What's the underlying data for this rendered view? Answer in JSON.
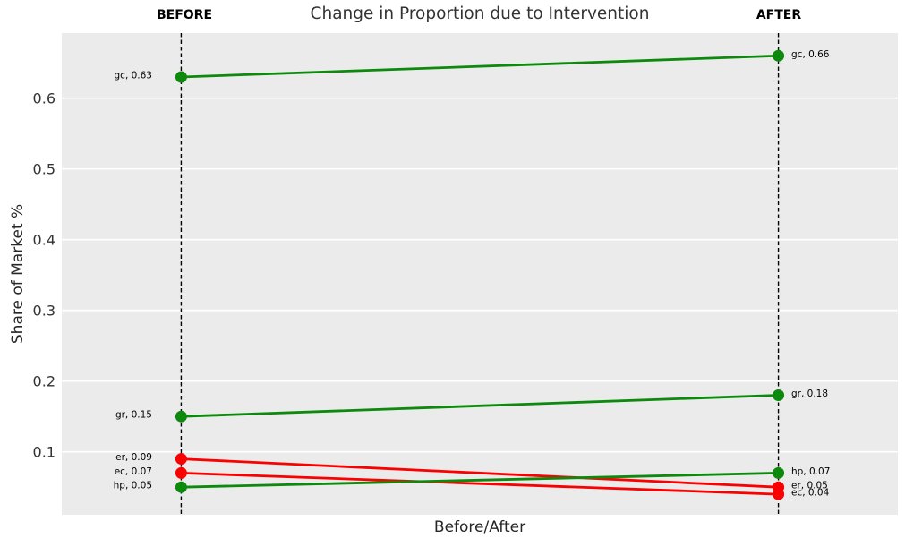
{
  "chart_data": {
    "type": "line",
    "subtype": "slopegraph",
    "title": "Change in Proportion due to Intervention",
    "xlabel": "Before/After",
    "ylabel": "Share of Market %",
    "columns": [
      "BEFORE",
      "AFTER"
    ],
    "x": [
      0,
      1
    ],
    "xlim": [
      -0.2,
      1.2
    ],
    "ylim": [
      0.011,
      0.692
    ],
    "yticks": [
      0.1,
      0.2,
      0.3,
      0.4,
      0.5,
      0.6
    ],
    "ytick_labels": [
      "0.1",
      "0.2",
      "0.3",
      "0.4",
      "0.5",
      "0.6"
    ],
    "grid": "horizontal white gridlines on gray panel",
    "legend": "none",
    "series": [
      {
        "name": "gc",
        "before": 0.63,
        "after": 0.66,
        "trend": "increase",
        "color": "#0d8a0d",
        "label_before": "gc, 0.63",
        "label_after": "gc, 0.66"
      },
      {
        "name": "gr",
        "before": 0.15,
        "after": 0.18,
        "trend": "increase",
        "color": "#0d8a0d",
        "label_before": "gr, 0.15",
        "label_after": "gr, 0.18"
      },
      {
        "name": "er",
        "before": 0.09,
        "after": 0.05,
        "trend": "decrease",
        "color": "#fb0000",
        "label_before": "er, 0.09",
        "label_after": "er, 0.05"
      },
      {
        "name": "ec",
        "before": 0.07,
        "after": 0.04,
        "trend": "decrease",
        "color": "#fb0000",
        "label_before": "ec, 0.07",
        "label_after": "ec, 0.04"
      },
      {
        "name": "hp",
        "before": 0.05,
        "after": 0.07,
        "trend": "increase",
        "color": "#0d8a0d",
        "label_before": "hp, 0.05",
        "label_after": "hp, 0.07"
      }
    ],
    "colors": {
      "increase": "#0d8a0d",
      "decrease": "#fb0000",
      "panel_background": "#ebebeb",
      "gridline": "#ffffff",
      "column_guide": "#000000",
      "title_text": "#333333",
      "tick_text": "#333333",
      "annotation_text": "#000000"
    }
  }
}
